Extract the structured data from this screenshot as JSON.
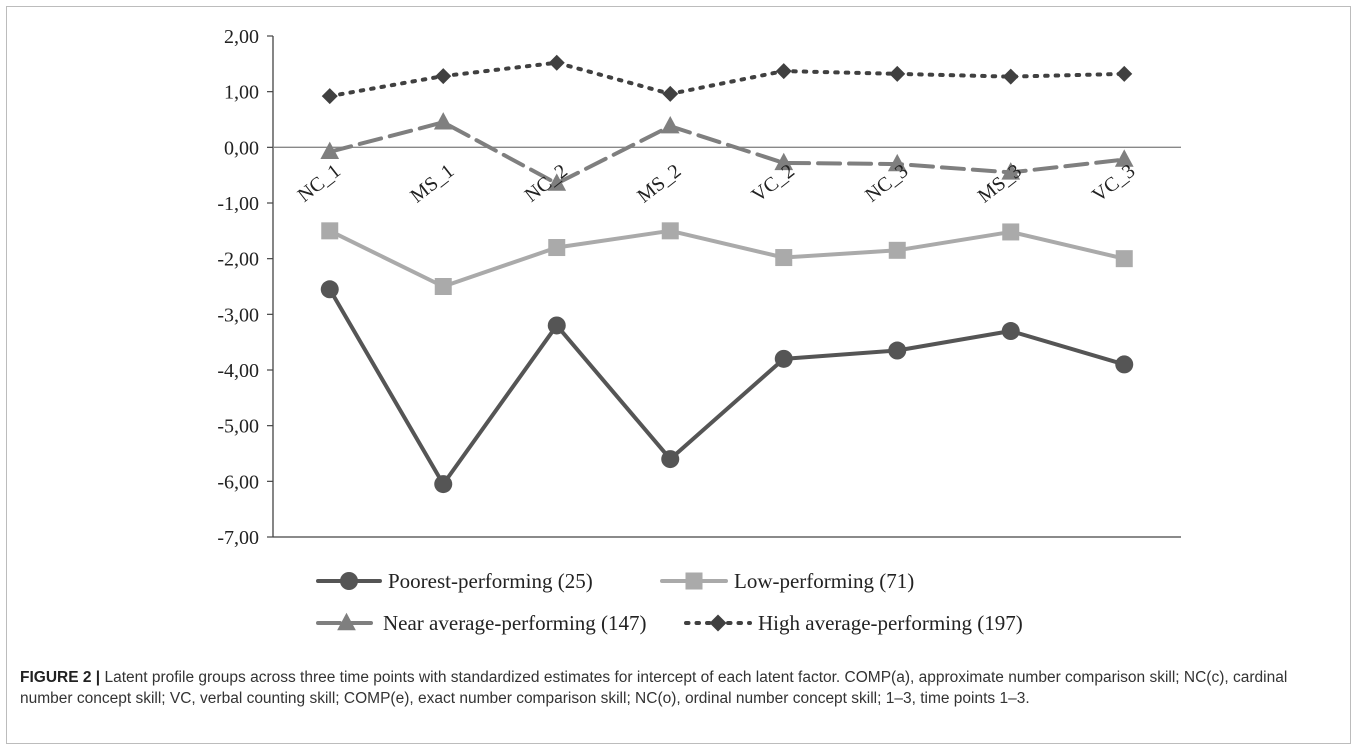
{
  "chart_data": {
    "type": "line",
    "categories": [
      "NC_1",
      "MS_1",
      "NC_2",
      "MS_2",
      "VC_2",
      "NC_3",
      "MS_3",
      "VC_3"
    ],
    "ylim": [
      -7,
      2
    ],
    "yticks": [
      "2,00",
      "1,00",
      "0,00",
      "-1,00",
      "-2,00",
      "-3,00",
      "-4,00",
      "-5,00",
      "-6,00",
      "-7,00"
    ],
    "grid": false,
    "legend_position": "bottom",
    "series": [
      {
        "name": "Poorest-performing (25)",
        "values": [
          -2.55,
          -6.05,
          -3.2,
          -5.6,
          -3.8,
          -3.65,
          -3.3,
          -3.9
        ],
        "color": "#555555",
        "marker": "circle",
        "dash": "solid"
      },
      {
        "name": "Low-performing (71)",
        "values": [
          -1.5,
          -2.5,
          -1.8,
          -1.5,
          -1.98,
          -1.85,
          -1.52,
          -2.0
        ],
        "color": "#aaaaaa",
        "marker": "square",
        "dash": "solid"
      },
      {
        "name": "Near average-performing (147)",
        "values": [
          -0.08,
          0.45,
          -0.65,
          0.38,
          -0.28,
          -0.3,
          -0.45,
          -0.22
        ],
        "color": "#7f7f7f",
        "marker": "triangle",
        "dash": "dashed"
      },
      {
        "name": "High average-performing (197)",
        "values": [
          0.92,
          1.28,
          1.52,
          0.96,
          1.37,
          1.32,
          1.27,
          1.32
        ],
        "color": "#404040",
        "marker": "diamond",
        "dash": "dotted"
      }
    ]
  },
  "caption": {
    "label": "FIGURE 2 |",
    "text": " Latent profile groups across three time points with standardized estimates for intercept of each latent factor. COMP(a), approximate number comparison skill; NC(c), cardinal number concept skill; VC, verbal counting skill; COMP(e), exact number comparison skill; NC(o), ordinal number concept skill; 1–3, time points 1–3."
  }
}
